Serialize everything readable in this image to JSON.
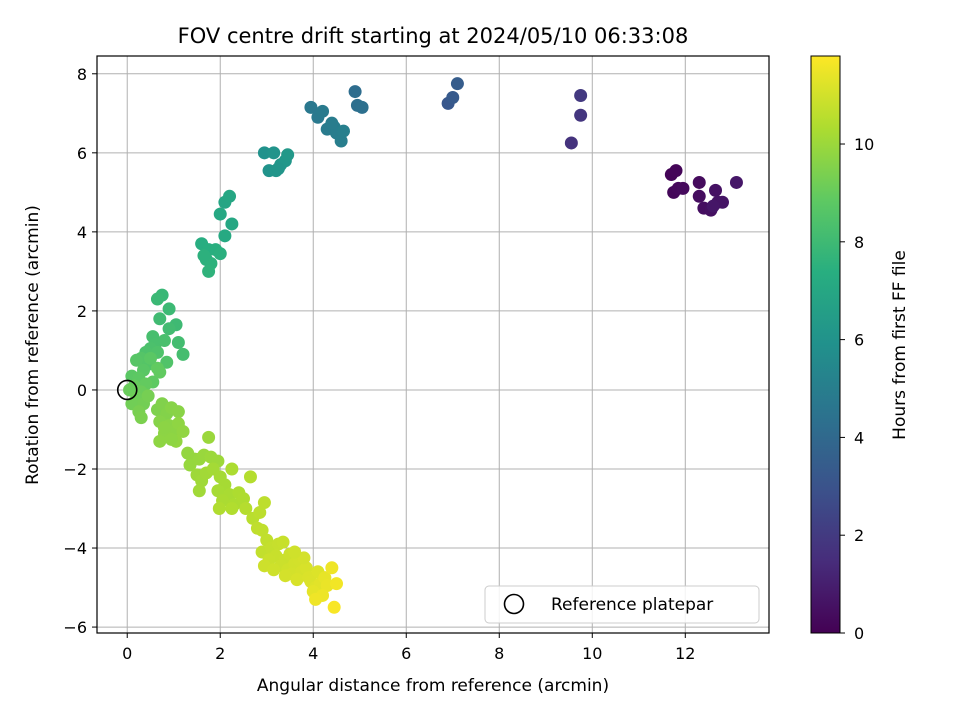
{
  "chart_data": {
    "type": "scatter",
    "title": "FOV centre drift starting at 2024/05/10 06:33:08",
    "xlabel": "Angular distance from reference (arcmin)",
    "ylabel": "Rotation from reference (arcmin)",
    "xlim": [
      -0.65,
      13.8
    ],
    "ylim": [
      -6.15,
      8.45
    ],
    "xticks": [
      0,
      2,
      4,
      6,
      8,
      10,
      12
    ],
    "yticks": [
      -6,
      -4,
      -2,
      0,
      2,
      4,
      6,
      8
    ],
    "grid": true,
    "legend": {
      "placement": "lower right",
      "entries": [
        "Reference platepar"
      ]
    },
    "colorbar": {
      "label": "Hours from first FF file",
      "range": [
        0,
        11.8
      ],
      "ticks": [
        0,
        2,
        4,
        6,
        8,
        10
      ],
      "colormap": "viridis"
    },
    "reference_point": {
      "x": 0,
      "y": 0
    },
    "columns": [
      "x",
      "y",
      "hours"
    ],
    "points": [
      [
        11.7,
        5.45,
        0.1
      ],
      [
        11.8,
        5.55,
        0.15
      ],
      [
        11.75,
        5.0,
        0.2
      ],
      [
        11.85,
        5.1,
        0.25
      ],
      [
        11.95,
        5.1,
        0.3
      ],
      [
        12.3,
        5.25,
        0.35
      ],
      [
        12.3,
        4.9,
        0.4
      ],
      [
        12.4,
        4.6,
        0.45
      ],
      [
        12.55,
        4.55,
        0.5
      ],
      [
        12.65,
        5.05,
        0.55
      ],
      [
        12.7,
        4.75,
        0.6
      ],
      [
        12.8,
        4.75,
        0.65
      ],
      [
        12.6,
        4.65,
        0.7
      ],
      [
        13.1,
        5.25,
        0.75
      ],
      [
        9.55,
        6.25,
        1.7
      ],
      [
        9.75,
        6.95,
        1.85
      ],
      [
        9.75,
        7.45,
        1.95
      ],
      [
        6.9,
        7.25,
        3.2
      ],
      [
        7.0,
        7.4,
        3.3
      ],
      [
        7.1,
        7.75,
        3.45
      ],
      [
        4.9,
        7.55,
        4.2
      ],
      [
        4.95,
        7.2,
        4.3
      ],
      [
        5.05,
        7.15,
        4.35
      ],
      [
        3.95,
        7.15,
        4.7
      ],
      [
        4.1,
        6.9,
        4.75
      ],
      [
        4.2,
        7.05,
        4.8
      ],
      [
        4.3,
        6.6,
        4.85
      ],
      [
        4.45,
        6.65,
        4.9
      ],
      [
        4.5,
        6.5,
        4.95
      ],
      [
        4.6,
        6.3,
        5.0
      ],
      [
        4.65,
        6.55,
        5.05
      ],
      [
        4.4,
        6.75,
        4.88
      ],
      [
        2.95,
        6.0,
        5.95
      ],
      [
        3.05,
        5.55,
        6.0
      ],
      [
        3.15,
        6.0,
        6.05
      ],
      [
        3.2,
        5.55,
        6.1
      ],
      [
        3.3,
        5.7,
        6.15
      ],
      [
        3.4,
        5.8,
        6.2
      ],
      [
        3.45,
        5.95,
        6.25
      ],
      [
        3.25,
        5.6,
        6.12
      ],
      [
        2.1,
        4.75,
        6.9
      ],
      [
        2.2,
        4.9,
        6.95
      ],
      [
        2.25,
        4.2,
        7.0
      ],
      [
        2.0,
        4.45,
        7.05
      ],
      [
        2.1,
        3.9,
        7.1
      ],
      [
        1.6,
        3.7,
        7.3
      ],
      [
        1.75,
        3.55,
        7.35
      ],
      [
        1.9,
        3.55,
        7.4
      ],
      [
        2.0,
        3.45,
        7.45
      ],
      [
        1.7,
        3.3,
        7.5
      ],
      [
        1.8,
        3.2,
        7.55
      ],
      [
        1.75,
        3.0,
        7.6
      ],
      [
        1.65,
        3.4,
        7.5
      ],
      [
        0.75,
        2.4,
        7.85
      ],
      [
        0.65,
        2.3,
        7.9
      ],
      [
        0.9,
        2.05,
        7.95
      ],
      [
        1.05,
        1.65,
        8.0
      ],
      [
        0.7,
        1.8,
        8.05
      ],
      [
        0.9,
        1.55,
        8.1
      ],
      [
        1.1,
        1.2,
        8.15
      ],
      [
        1.2,
        0.9,
        8.2
      ],
      [
        0.55,
        1.35,
        8.25
      ],
      [
        0.6,
        1.15,
        8.3
      ],
      [
        0.5,
        1.05,
        8.35
      ],
      [
        0.4,
        0.95,
        8.4
      ],
      [
        0.8,
        1.25,
        8.3
      ],
      [
        0.65,
        0.95,
        8.45
      ],
      [
        0.85,
        0.7,
        8.5
      ],
      [
        0.45,
        0.65,
        8.55
      ],
      [
        0.3,
        0.8,
        8.6
      ],
      [
        0.2,
        0.75,
        8.65
      ],
      [
        0.35,
        0.5,
        8.7
      ],
      [
        0.1,
        0.35,
        8.75
      ],
      [
        0.25,
        0.3,
        8.8
      ],
      [
        0.55,
        0.2,
        8.85
      ],
      [
        0.7,
        0.45,
        8.9
      ],
      [
        0.4,
        0.15,
        8.95
      ],
      [
        0.15,
        0.1,
        9.0
      ],
      [
        0.05,
        0.0,
        9.05
      ],
      [
        0.3,
        -0.05,
        9.1
      ],
      [
        0.2,
        -0.2,
        9.15
      ],
      [
        0.1,
        -0.35,
        9.2
      ],
      [
        0.35,
        -0.35,
        9.25
      ],
      [
        0.45,
        -0.15,
        9.3
      ],
      [
        0.25,
        -0.55,
        9.35
      ],
      [
        0.3,
        -0.7,
        9.4
      ],
      [
        0.65,
        0.55,
        8.9
      ],
      [
        0.5,
        0.8,
        8.75
      ],
      [
        0.65,
        -0.5,
        9.45
      ],
      [
        0.75,
        -0.35,
        9.5
      ],
      [
        0.85,
        -0.6,
        9.55
      ],
      [
        0.7,
        -0.8,
        9.6
      ],
      [
        0.95,
        -0.45,
        9.62
      ],
      [
        1.1,
        -0.55,
        9.65
      ],
      [
        0.9,
        -0.9,
        9.68
      ],
      [
        1.0,
        -1.05,
        9.7
      ],
      [
        0.8,
        -1.1,
        9.72
      ],
      [
        0.7,
        -1.3,
        9.75
      ],
      [
        1.1,
        -0.85,
        9.77
      ],
      [
        1.2,
        -1.05,
        9.8
      ],
      [
        1.05,
        -1.3,
        9.82
      ],
      [
        0.95,
        -1.25,
        9.75
      ],
      [
        0.8,
        -0.95,
        9.7
      ],
      [
        1.3,
        -1.6,
        9.85
      ],
      [
        1.45,
        -1.75,
        9.88
      ],
      [
        1.35,
        -1.9,
        9.9
      ],
      [
        1.55,
        -1.75,
        9.92
      ],
      [
        1.65,
        -1.65,
        9.95
      ],
      [
        1.75,
        -1.2,
        9.97
      ],
      [
        1.8,
        -1.7,
        10.0
      ],
      [
        1.95,
        -1.8,
        10.02
      ],
      [
        1.5,
        -2.15,
        10.05
      ],
      [
        1.6,
        -2.3,
        10.08
      ],
      [
        1.55,
        -2.55,
        10.1
      ],
      [
        1.7,
        -2.1,
        10.12
      ],
      [
        1.85,
        -2.0,
        10.15
      ],
      [
        2.0,
        -2.2,
        10.18
      ],
      [
        2.1,
        -2.4,
        10.2
      ],
      [
        1.95,
        -2.55,
        10.22
      ],
      [
        2.2,
        -2.65,
        10.25
      ],
      [
        2.05,
        -2.8,
        10.28
      ],
      [
        2.3,
        -2.9,
        10.3
      ],
      [
        2.4,
        -2.6,
        10.32
      ],
      [
        2.5,
        -2.75,
        10.35
      ],
      [
        2.25,
        -2.0,
        10.3
      ],
      [
        1.98,
        -3.0,
        10.38
      ],
      [
        2.25,
        -3.0,
        10.4
      ],
      [
        2.65,
        -2.2,
        10.45
      ],
      [
        2.55,
        -3.0,
        10.48
      ],
      [
        2.7,
        -3.25,
        10.55
      ],
      [
        2.85,
        -3.1,
        10.6
      ],
      [
        2.95,
        -2.85,
        10.62
      ],
      [
        2.8,
        -3.5,
        10.65
      ],
      [
        3.0,
        -3.8,
        10.7
      ],
      [
        2.9,
        -4.1,
        10.72
      ],
      [
        3.1,
        -4.0,
        10.75
      ],
      [
        3.25,
        -3.9,
        10.78
      ],
      [
        3.35,
        -3.85,
        10.8
      ],
      [
        3.2,
        -4.2,
        10.82
      ],
      [
        3.05,
        -4.3,
        10.84
      ],
      [
        3.4,
        -4.3,
        10.86
      ],
      [
        3.3,
        -4.45,
        10.88
      ],
      [
        3.5,
        -4.15,
        10.9
      ],
      [
        2.95,
        -4.45,
        10.92
      ],
      [
        3.15,
        -4.55,
        10.94
      ],
      [
        3.45,
        -4.55,
        10.96
      ],
      [
        3.6,
        -4.4,
        10.98
      ],
      [
        3.7,
        -4.3,
        11.0
      ],
      [
        3.55,
        -4.65,
        11.02
      ],
      [
        3.4,
        -4.7,
        11.04
      ],
      [
        3.75,
        -4.6,
        11.06
      ],
      [
        3.85,
        -4.5,
        11.1
      ],
      [
        3.65,
        -4.8,
        11.12
      ],
      [
        3.9,
        -4.75,
        11.15
      ],
      [
        3.95,
        -4.85,
        11.18
      ],
      [
        4.1,
        -4.6,
        11.2
      ],
      [
        4.05,
        -5.0,
        11.25
      ],
      [
        4.15,
        -4.9,
        11.3
      ],
      [
        4.0,
        -5.1,
        11.35
      ],
      [
        4.25,
        -4.75,
        11.4
      ],
      [
        4.3,
        -4.95,
        11.45
      ],
      [
        4.2,
        -5.2,
        11.5
      ],
      [
        4.05,
        -5.3,
        11.55
      ],
      [
        4.4,
        -4.5,
        11.55
      ],
      [
        4.5,
        -4.9,
        11.6
      ],
      [
        4.45,
        -5.5,
        11.7
      ],
      [
        3.8,
        -4.25,
        11.05
      ],
      [
        3.6,
        -4.1,
        10.95
      ],
      [
        2.9,
        -3.55,
        10.68
      ]
    ]
  }
}
